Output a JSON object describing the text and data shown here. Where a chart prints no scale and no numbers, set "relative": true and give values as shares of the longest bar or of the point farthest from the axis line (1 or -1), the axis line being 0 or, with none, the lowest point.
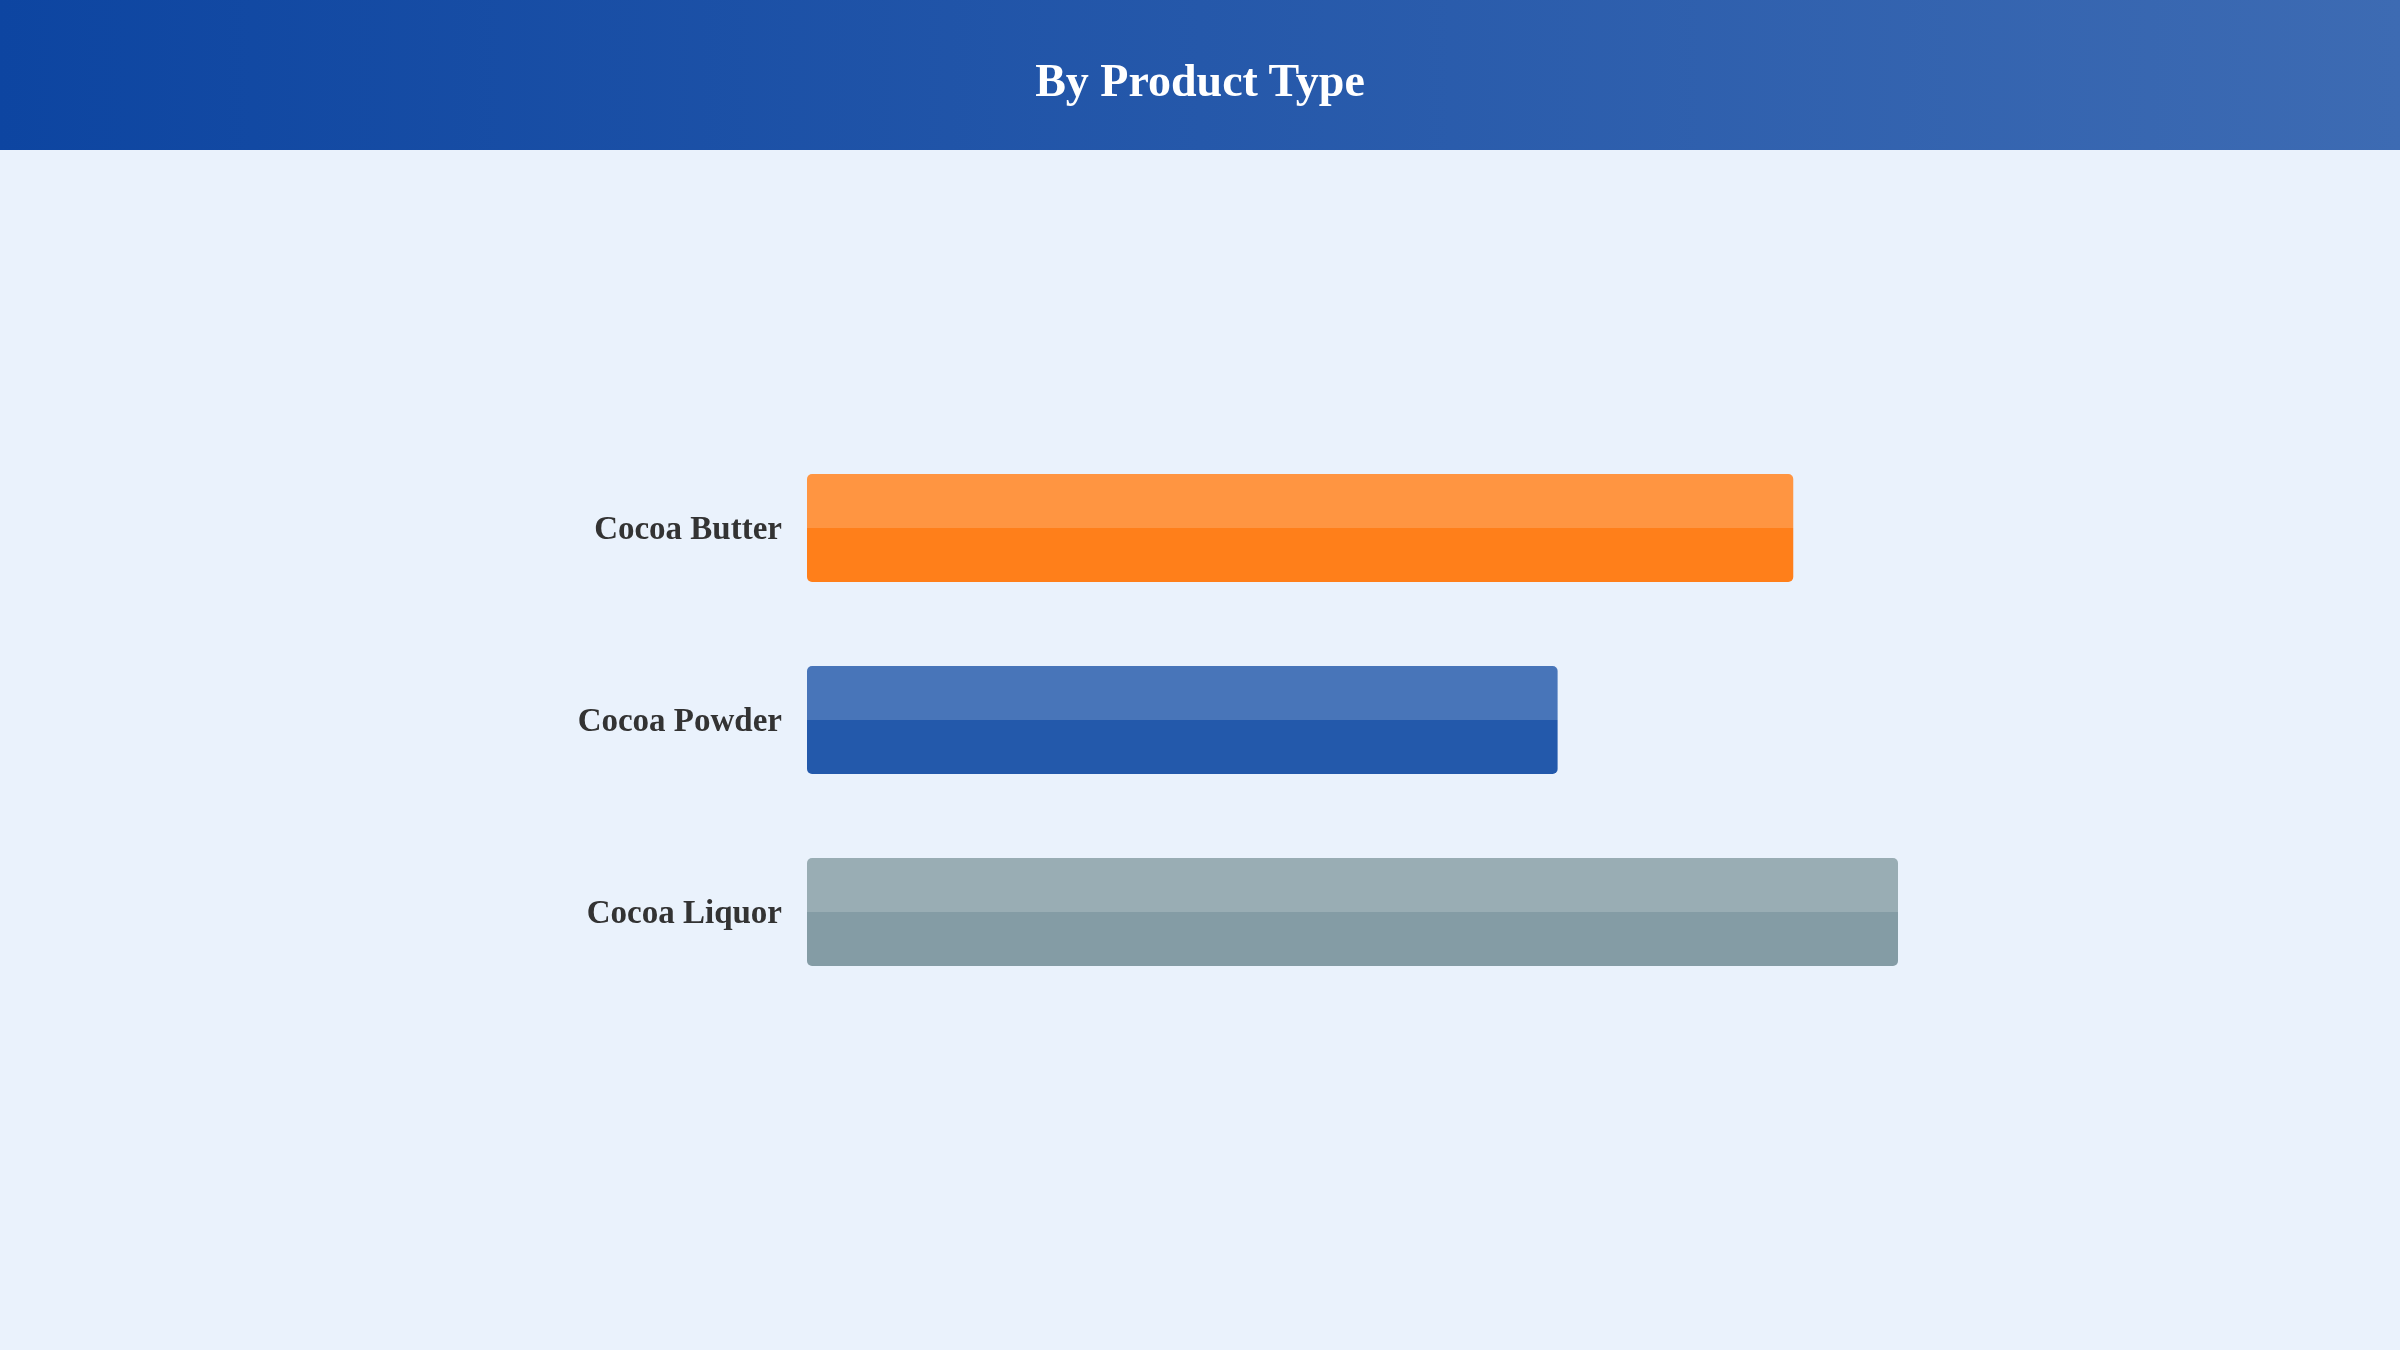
{
  "chart_data": {
    "type": "bar",
    "orientation": "horizontal",
    "relative": true,
    "title": "By Product Type",
    "categories": [
      "Cocoa Butter",
      "Cocoa Powder",
      "Cocoa Liquor"
    ],
    "values": [
      0.904,
      0.688,
      1
    ],
    "colors": [
      "#ff7f1a",
      "#2359ab",
      "#849ca5"
    ]
  }
}
